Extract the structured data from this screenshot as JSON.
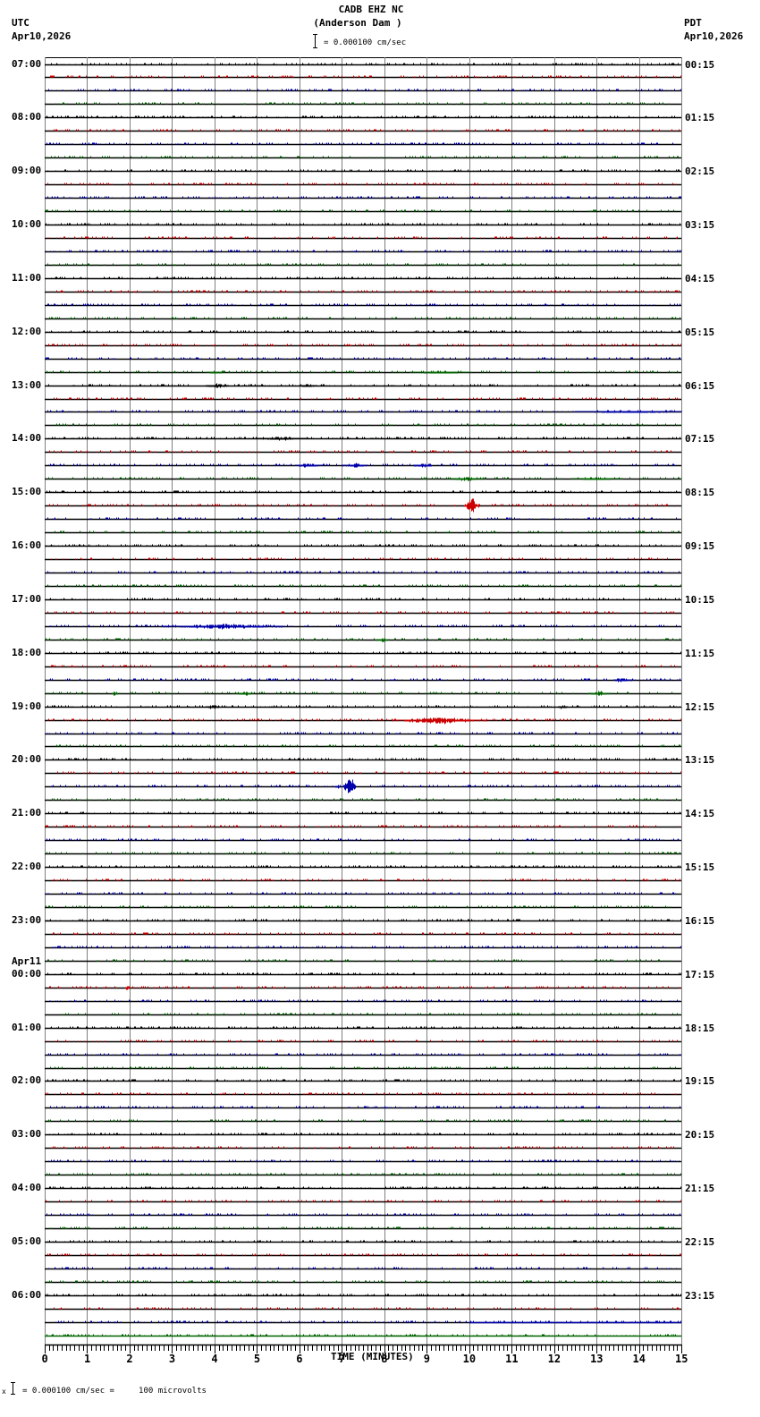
{
  "header": {
    "station": "CADB EHZ NC",
    "location": "(Anderson Dam )",
    "scale": "= 0.000100 cm/sec",
    "left_tz": "UTC",
    "left_date": "Apr10,2026",
    "right_tz": "PDT",
    "right_date": "Apr10,2026"
  },
  "footer": {
    "scale": "= 0.000100 cm/sec =     100 microvolts",
    "marker": "x"
  },
  "chart_data": {
    "type": "line",
    "title": "CADB EHZ NC (Anderson Dam )",
    "subtitle": "Helicorder seismogram, 24 hours, 15 minutes per line",
    "xlabel": "TIME (MINUTES)",
    "ylabel": "",
    "x_ticks": [
      "0",
      "1",
      "2",
      "3",
      "4",
      "5",
      "6",
      "7",
      "8",
      "9",
      "10",
      "11",
      "12",
      "13",
      "14",
      "15"
    ],
    "xlim": [
      0,
      15
    ],
    "grid": true,
    "trace_colors": [
      "#000000",
      "#cc0000",
      "#0000aa",
      "#006400"
    ],
    "rows_per_hour": 4,
    "num_rows": 96,
    "left_labels": [
      {
        "row": 0,
        "text": "07:00"
      },
      {
        "row": 4,
        "text": "08:00"
      },
      {
        "row": 8,
        "text": "09:00"
      },
      {
        "row": 12,
        "text": "10:00"
      },
      {
        "row": 16,
        "text": "11:00"
      },
      {
        "row": 20,
        "text": "12:00"
      },
      {
        "row": 24,
        "text": "13:00"
      },
      {
        "row": 28,
        "text": "14:00"
      },
      {
        "row": 32,
        "text": "15:00"
      },
      {
        "row": 36,
        "text": "16:00"
      },
      {
        "row": 40,
        "text": "17:00"
      },
      {
        "row": 44,
        "text": "18:00"
      },
      {
        "row": 48,
        "text": "19:00"
      },
      {
        "row": 52,
        "text": "20:00"
      },
      {
        "row": 56,
        "text": "21:00"
      },
      {
        "row": 60,
        "text": "22:00"
      },
      {
        "row": 64,
        "text": "23:00"
      },
      {
        "row": 68,
        "text": "00:00",
        "date": "Apr11"
      },
      {
        "row": 72,
        "text": "01:00"
      },
      {
        "row": 76,
        "text": "02:00"
      },
      {
        "row": 80,
        "text": "03:00"
      },
      {
        "row": 84,
        "text": "04:00"
      },
      {
        "row": 88,
        "text": "05:00"
      },
      {
        "row": 92,
        "text": "06:00"
      }
    ],
    "right_labels": [
      {
        "row": 0,
        "text": "00:15"
      },
      {
        "row": 4,
        "text": "01:15"
      },
      {
        "row": 8,
        "text": "02:15"
      },
      {
        "row": 12,
        "text": "03:15"
      },
      {
        "row": 16,
        "text": "04:15"
      },
      {
        "row": 20,
        "text": "05:15"
      },
      {
        "row": 24,
        "text": "06:15"
      },
      {
        "row": 28,
        "text": "07:15"
      },
      {
        "row": 32,
        "text": "08:15"
      },
      {
        "row": 36,
        "text": "09:15"
      },
      {
        "row": 40,
        "text": "10:15"
      },
      {
        "row": 44,
        "text": "11:15"
      },
      {
        "row": 48,
        "text": "12:15"
      },
      {
        "row": 52,
        "text": "13:15"
      },
      {
        "row": 56,
        "text": "14:15"
      },
      {
        "row": 60,
        "text": "15:15"
      },
      {
        "row": 64,
        "text": "16:15"
      },
      {
        "row": 68,
        "text": "17:15"
      },
      {
        "row": 72,
        "text": "18:15"
      },
      {
        "row": 76,
        "text": "19:15"
      },
      {
        "row": 80,
        "text": "20:15"
      },
      {
        "row": 84,
        "text": "21:15"
      },
      {
        "row": 88,
        "text": "22:15"
      },
      {
        "row": 92,
        "text": "23:15"
      }
    ],
    "events": [
      {
        "row": 23,
        "minute": 3.8,
        "duration": 0.4,
        "amplitude": 2
      },
      {
        "row": 23,
        "minute": 8.6,
        "duration": 1.4,
        "amplitude": 2
      },
      {
        "row": 24,
        "minute": 3.8,
        "duration": 0.5,
        "amplitude": 3
      },
      {
        "row": 24,
        "minute": 6.0,
        "duration": 0.4,
        "amplitude": 2
      },
      {
        "row": 26,
        "minute": 12.5,
        "duration": 2.5,
        "amplitude": 2
      },
      {
        "row": 28,
        "minute": 5.0,
        "duration": 1.2,
        "amplitude": 2
      },
      {
        "row": 30,
        "minute": 5.9,
        "duration": 0.6,
        "amplitude": 3
      },
      {
        "row": 30,
        "minute": 7.0,
        "duration": 0.6,
        "amplitude": 3
      },
      {
        "row": 30,
        "minute": 8.7,
        "duration": 0.4,
        "amplitude": 3
      },
      {
        "row": 31,
        "minute": 9.5,
        "duration": 0.8,
        "amplitude": 3
      },
      {
        "row": 31,
        "minute": 12.4,
        "duration": 1.2,
        "amplitude": 2
      },
      {
        "row": 33,
        "minute": 9.9,
        "duration": 0.3,
        "amplitude": 9
      },
      {
        "row": 42,
        "minute": 2.8,
        "duration": 2.8,
        "amplitude": 3
      },
      {
        "row": 43,
        "minute": 7.8,
        "duration": 0.3,
        "amplitude": 3
      },
      {
        "row": 46,
        "minute": 13.4,
        "duration": 0.4,
        "amplitude": 3
      },
      {
        "row": 47,
        "minute": 1.6,
        "duration": 0.1,
        "amplitude": 5
      },
      {
        "row": 47,
        "minute": 4.5,
        "duration": 0.4,
        "amplitude": 3
      },
      {
        "row": 47,
        "minute": 12.8,
        "duration": 0.5,
        "amplitude": 3
      },
      {
        "row": 48,
        "minute": 3.8,
        "duration": 0.3,
        "amplitude": 3
      },
      {
        "row": 48,
        "minute": 12.1,
        "duration": 0.2,
        "amplitude": 3
      },
      {
        "row": 49,
        "minute": 8.2,
        "duration": 2.2,
        "amplitude": 4
      },
      {
        "row": 54,
        "minute": 7.05,
        "duration": 0.25,
        "amplitude": 14
      },
      {
        "row": 54,
        "minute": 6.85,
        "duration": 0.1,
        "amplitude": 4
      },
      {
        "row": 69,
        "minute": 1.9,
        "duration": 0.1,
        "amplitude": 4
      }
    ],
    "partial_last_row": {
      "row": 94,
      "solid_from_minute": 10.0
    }
  },
  "axis": {
    "xlabel": "TIME (MINUTES)"
  }
}
